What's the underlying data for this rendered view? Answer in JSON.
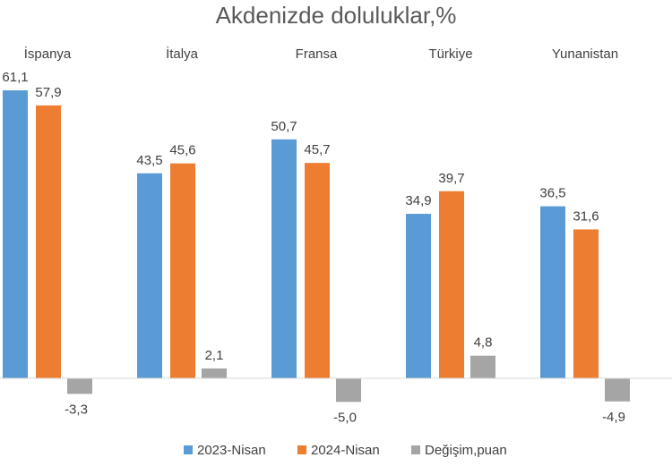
{
  "chart_data": {
    "type": "bar",
    "title": "Akdenizde doluluklar,%",
    "categories": [
      "İspanya",
      "İtalya",
      "Fransa",
      "Türkiye",
      "Yunanistan"
    ],
    "series": [
      {
        "name": "2023-Nisan",
        "color": "#5b9bd5",
        "values": [
          61.1,
          43.5,
          50.7,
          34.9,
          36.5
        ]
      },
      {
        "name": "2024-Nisan",
        "color": "#ed7d31",
        "values": [
          57.9,
          45.6,
          45.7,
          39.7,
          31.6
        ]
      },
      {
        "name": "Değişim,puan",
        "color": "#a5a5a5",
        "values": [
          -3.3,
          2.1,
          -5.0,
          4.8,
          -4.9
        ]
      }
    ],
    "value_labels": [
      [
        "61,1",
        "43,5",
        "50,7",
        "34,9",
        "36,5"
      ],
      [
        "57,9",
        "45,6",
        "45,7",
        "39,7",
        "31,6"
      ],
      [
        "-3,3",
        "2,1",
        "-5,0",
        "4,8",
        "-4,9"
      ]
    ],
    "xlabel": "",
    "ylabel": "",
    "grid": false,
    "legend_position": "bottom"
  }
}
